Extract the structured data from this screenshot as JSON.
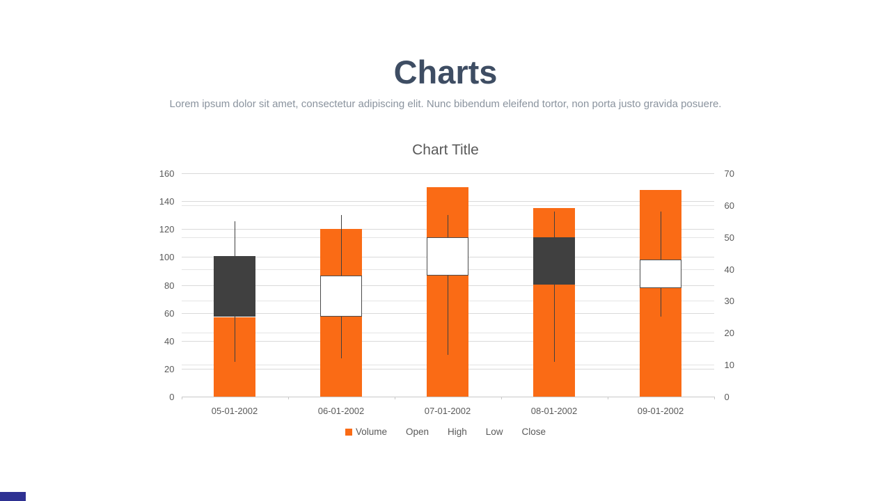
{
  "page": {
    "title": "Charts",
    "subtitle": "Lorem ipsum dolor sit amet, consectetur adipiscing elit. Nunc bibendum eleifend tortor, non porta justo gravida posuere.",
    "title_color": "#3E4D63",
    "subtitle_color": "#8A939E",
    "accent_bar_color": "#2E3192"
  },
  "chart_data": {
    "type": "bar+candlestick (volume-open-high-low-close stock chart)",
    "title": "Chart Title",
    "categories": [
      "05-01-2002",
      "06-01-2002",
      "07-01-2002",
      "08-01-2002",
      "09-01-2002"
    ],
    "series": [
      {
        "name": "Volume",
        "type": "bar",
        "axis": "left",
        "values": [
          57,
          120,
          150,
          135,
          148
        ]
      },
      {
        "name": "Open",
        "type": "candle-open",
        "axis": "right",
        "values": [
          44,
          25,
          38,
          50,
          34
        ]
      },
      {
        "name": "High",
        "type": "candle-high",
        "axis": "right",
        "values": [
          55,
          57,
          57,
          58,
          58
        ]
      },
      {
        "name": "Low",
        "type": "candle-low",
        "axis": "right",
        "values": [
          11,
          12,
          13,
          11,
          25
        ]
      },
      {
        "name": "Close",
        "type": "candle-close",
        "axis": "right",
        "values": [
          25,
          38,
          50,
          35,
          43
        ]
      }
    ],
    "left_axis": {
      "min": 0,
      "max": 160,
      "step": 20,
      "ticks": [
        0,
        20,
        40,
        60,
        80,
        100,
        120,
        140,
        160
      ]
    },
    "right_axis": {
      "min": 0,
      "max": 70,
      "step": 10,
      "ticks": [
        0,
        10,
        20,
        30,
        40,
        50,
        60,
        70
      ]
    },
    "legend_position": "bottom",
    "grid": true,
    "colors": {
      "volume_bar": "#FA6B15",
      "up_candle_fill": "#FFFFFF",
      "down_candle_fill": "#404040",
      "candle_border": "#4A4A4A",
      "wick": "#3F3F3F",
      "gridline_primary": "#D9D9D9",
      "gridline_secondary": "#E4E4E4",
      "axis_line": "#C8C8C8",
      "text": "#595959"
    }
  }
}
